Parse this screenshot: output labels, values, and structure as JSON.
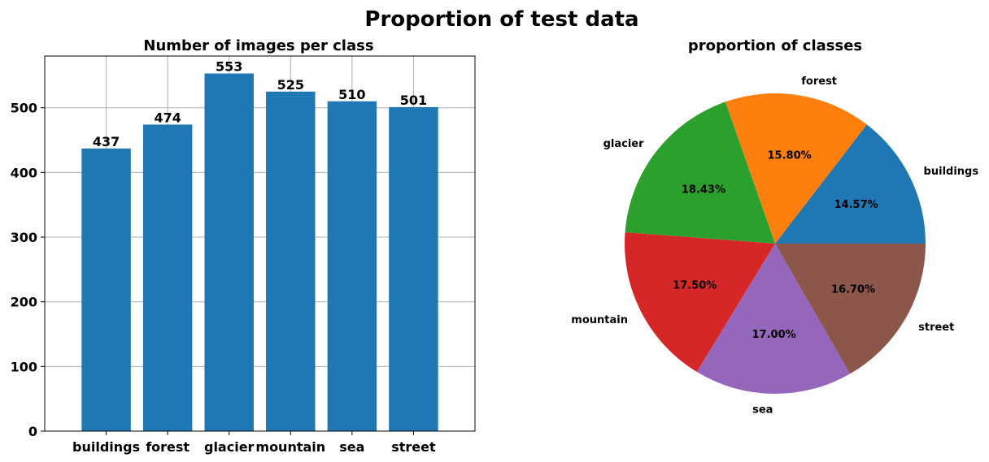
{
  "figure_title": "Proportion of test data",
  "chart_data": [
    {
      "type": "bar",
      "title": "Number of images per class",
      "xlabel": "",
      "ylabel": "",
      "categories": [
        "buildings",
        "forest",
        "glacier",
        "mountain",
        "sea",
        "street"
      ],
      "values": [
        437,
        474,
        553,
        525,
        510,
        501
      ],
      "data_labels": [
        "437",
        "474",
        "553",
        "525",
        "510",
        "501"
      ],
      "yticks": [
        0,
        100,
        200,
        300,
        400,
        500
      ],
      "ytick_labels": [
        "0",
        "100",
        "200",
        "300",
        "400",
        "500"
      ],
      "ylim": [
        0,
        580
      ],
      "grid": true,
      "color": "#1f77b4"
    },
    {
      "type": "pie",
      "title": "proportion of classes",
      "labels": [
        "buildings",
        "forest",
        "glacier",
        "mountain",
        "sea",
        "street"
      ],
      "values": [
        437,
        474,
        553,
        525,
        510,
        501
      ],
      "percent_labels": [
        "14.57%",
        "15.80%",
        "18.43%",
        "17.50%",
        "17.00%",
        "16.70%"
      ],
      "colors": [
        "#1f77b4",
        "#ff7f0e",
        "#2ca02c",
        "#d62728",
        "#9467bd",
        "#8c564b"
      ]
    }
  ]
}
